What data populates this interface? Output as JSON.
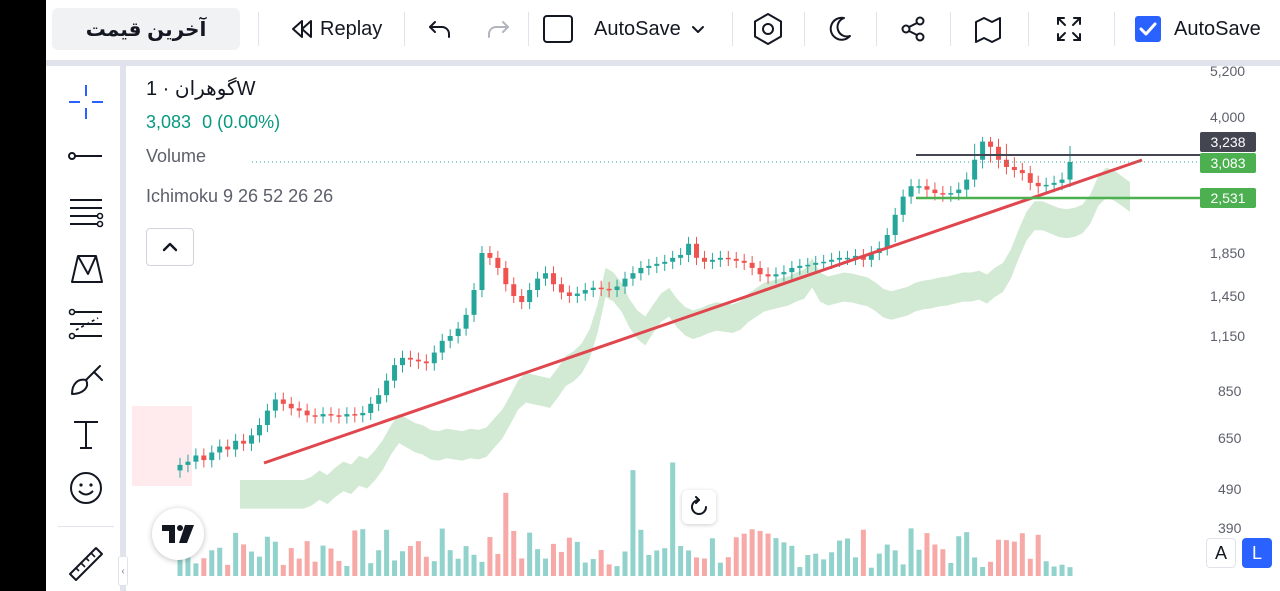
{
  "toolbar": {
    "symbol": "آخرین قیمت",
    "replay_label": "Replay",
    "autosave_label": "AutoSave",
    "autosave_check_label": "AutoSave",
    "autosave_checked": true,
    "icons": [
      "replay-icon",
      "undo-icon",
      "redo-icon",
      "layout-square-icon",
      "chevron-down-icon",
      "hexagon-settings-icon",
      "moon-icon",
      "share-icon",
      "snapshot-icon",
      "fullscreen-icon",
      "checkbox-icon"
    ]
  },
  "left_tools": [
    "crosshair-icon",
    "trend-line-icon",
    "fib-retracement-icon",
    "pattern-xabcd-icon",
    "prediction-icon",
    "brush-icon",
    "text-icon",
    "emoji-icon",
    "ruler-icon"
  ],
  "legend": {
    "title": "گوهران · 1W",
    "last": "3,083",
    "change": "0 (0.00%)",
    "volume": "Volume",
    "ichimoku": "Ichimoku 9 26 52 26 26"
  },
  "price_scale": {
    "labels": [
      "5,200",
      "4,000",
      "1,850",
      "1,450",
      "1,150",
      "850",
      "650",
      "490",
      "390"
    ],
    "tags": [
      {
        "value": "3,238",
        "color": "#434651"
      },
      {
        "value": "3,083",
        "color": "#4caf50"
      },
      {
        "value": "2,531",
        "color": "#4caf50"
      }
    ]
  },
  "scale_buttons": {
    "auto": "A",
    "log": "L"
  },
  "colors": {
    "up": "#26a69a",
    "down": "#ef5350",
    "trendline": "#e0464e",
    "cloud": "#a5d6a7",
    "resistance": "#434651",
    "support": "#4caf50",
    "accent": "#2962ff"
  },
  "chart_data": {
    "type": "candlestick",
    "timeframe": "1W",
    "y_scale": "log",
    "close_path": [
      560,
      570,
      590,
      575,
      600,
      620,
      610,
      640,
      630,
      660,
      700,
      760,
      810,
      790,
      770,
      760,
      740,
      735,
      745,
      740,
      735,
      745,
      740,
      750,
      790,
      830,
      900,
      980,
      1020,
      1010,
      1000,
      990,
      1050,
      1120,
      1150,
      1200,
      1300,
      1500,
      1850,
      1800,
      1700,
      1550,
      1450,
      1400,
      1500,
      1600,
      1650,
      1550,
      1480,
      1450,
      1470,
      1500,
      1520,
      1510,
      1500,
      1530,
      1600,
      1650,
      1700,
      1720,
      1740,
      1760,
      1800,
      1830,
      1950,
      1800,
      1760,
      1780,
      1800,
      1790,
      1770,
      1750,
      1700,
      1640,
      1620,
      1640,
      1660,
      1700,
      1720,
      1730,
      1750,
      1760,
      1780,
      1800,
      1800,
      1820,
      1780,
      1850,
      1900,
      2050,
      2300,
      2550,
      2700,
      2700,
      2650,
      2600,
      2580,
      2600,
      2650,
      2800,
      3100,
      3250,
      3200,
      3100,
      3000,
      2950,
      2900,
      2750,
      2700,
      2720,
      2750,
      2800,
      3083
    ],
    "resistance_level": 3238,
    "support_level": 2531,
    "last_price": 3083
  }
}
